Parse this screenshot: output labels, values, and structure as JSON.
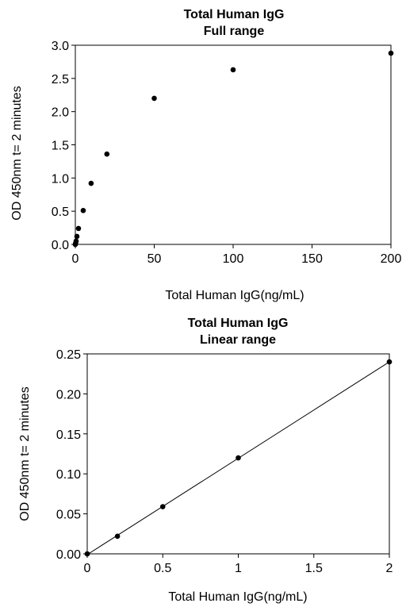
{
  "chart_data": [
    {
      "type": "scatter",
      "title": "Total Human IgG",
      "subtitle": "Full range",
      "xlabel": "Total  Human  IgG(ng/mL)",
      "ylabel": "OD 450nm t= 2 minutes",
      "xlim": [
        0,
        200
      ],
      "ylim": [
        0,
        3.0
      ],
      "xticks": [
        "0",
        "50",
        "100",
        "150",
        "200"
      ],
      "yticks": [
        "0.0",
        "0.5",
        "1.0",
        "1.5",
        "2.0",
        "2.5",
        "3.0"
      ],
      "grid": false,
      "series": [
        {
          "x": [
            0,
            0.2,
            0.5,
            1,
            2,
            5,
            10,
            20,
            50,
            100,
            200
          ],
          "y": [
            0.0,
            0.02,
            0.05,
            0.12,
            0.24,
            0.51,
            0.92,
            1.36,
            2.2,
            2.63,
            2.88
          ]
        }
      ]
    },
    {
      "type": "scatter",
      "title": "Total Human IgG",
      "subtitle": "Linear range",
      "xlabel": "Total  Human  IgG(ng/mL)",
      "ylabel": "OD 450nm t= 2 minutes",
      "xlim": [
        0,
        2
      ],
      "ylim": [
        0,
        0.25
      ],
      "xticks": [
        "0",
        "0.5",
        "1",
        "1.5",
        "2"
      ],
      "yticks": [
        "0.00",
        "0.05",
        "0.10",
        "0.15",
        "0.20",
        "0.25"
      ],
      "grid": false,
      "trendline": "linear",
      "series": [
        {
          "x": [
            0,
            0.2,
            0.5,
            1,
            2
          ],
          "y": [
            0.0,
            0.022,
            0.059,
            0.12,
            0.24
          ]
        }
      ]
    }
  ]
}
